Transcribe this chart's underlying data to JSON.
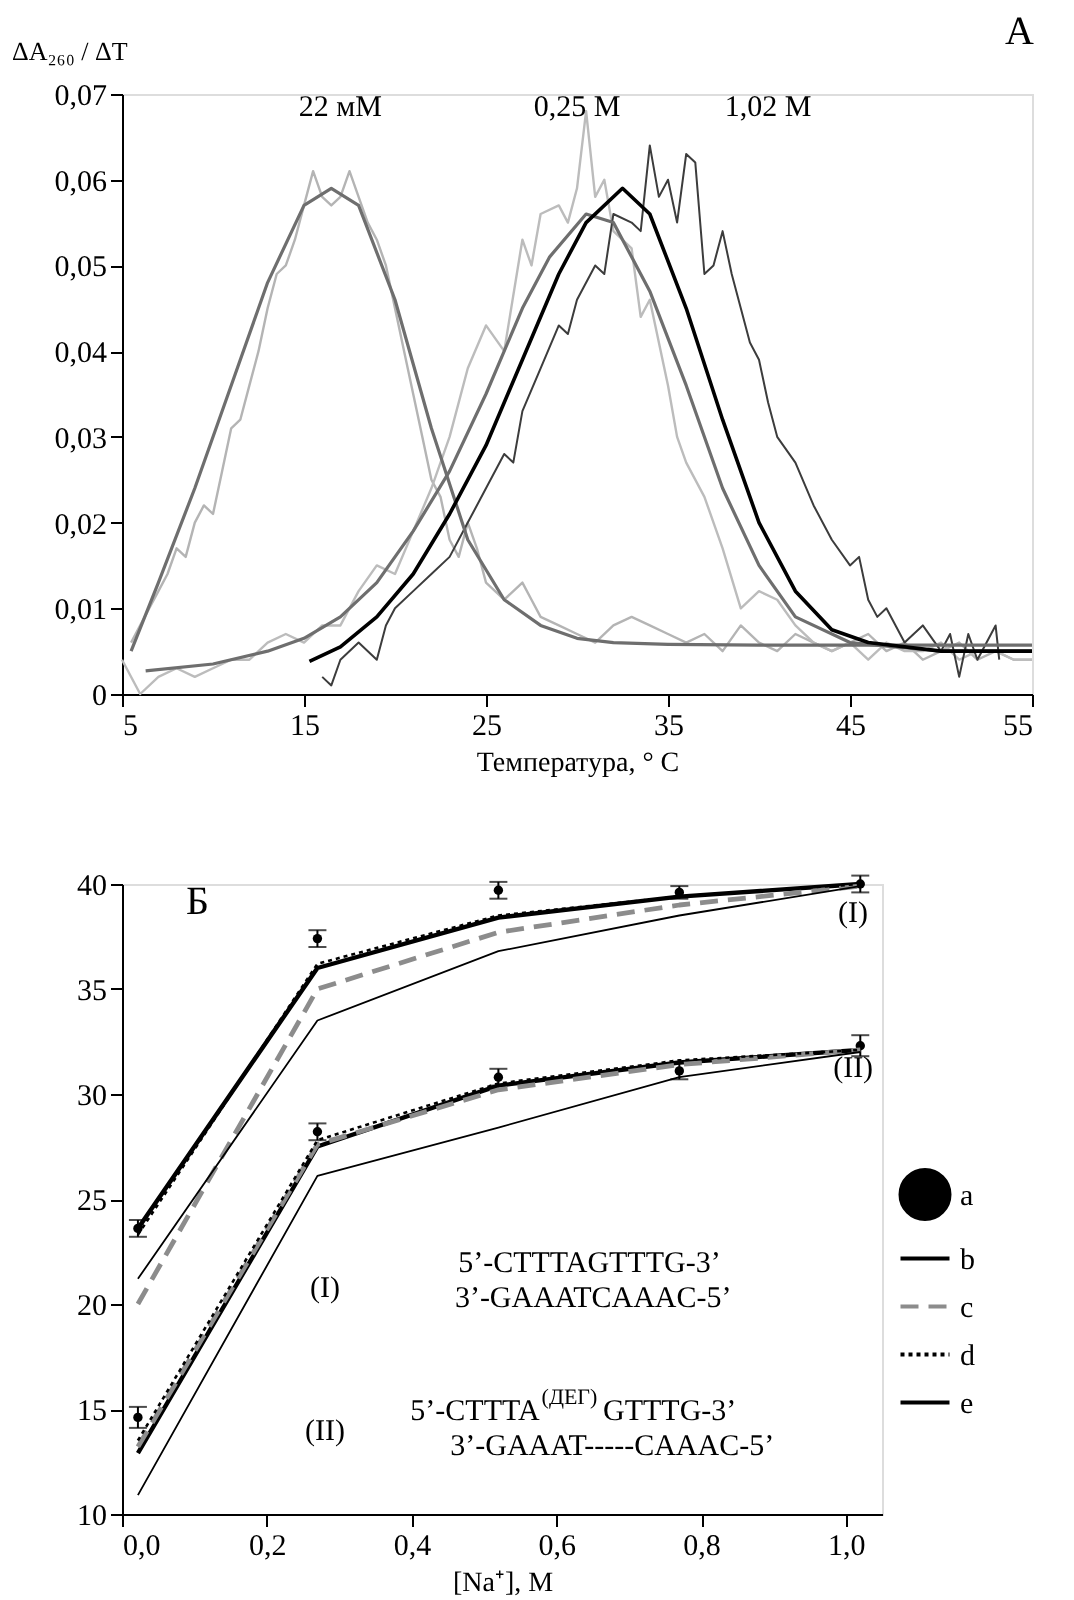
{
  "chart_data": [
    {
      "type": "line",
      "title": "А",
      "xlabel": "Температура, ° С",
      "ylabel": "ΔA₂₆₀ / ΔT",
      "xlim": [
        5,
        55
      ],
      "xticks": [
        5,
        15,
        25,
        35,
        45,
        55
      ],
      "ylim": [
        0,
        0.07
      ],
      "yticks": [
        0,
        {
          "value": 0.01,
          "label": "0,01"
        },
        {
          "value": 0.02,
          "label": "0,02"
        },
        {
          "value": 0.03,
          "label": "0,03"
        },
        {
          "value": 0.04,
          "label": "0,04"
        },
        {
          "value": 0.05,
          "label": "0,05"
        },
        {
          "value": 0.06,
          "label": "0,06"
        },
        {
          "value": 0.07,
          "label": "0,07"
        }
      ],
      "legend": false,
      "marker": "none",
      "annotations": [
        "22 мМ",
        "0,25 М",
        "1,02 М"
      ],
      "series": [
        {
          "color": "#b4b4b4",
          "x": [
            5.5,
            6,
            6.5,
            7,
            7.5,
            8,
            8.5,
            9,
            9.5,
            10,
            10.5,
            11,
            11.5,
            12,
            12.5,
            13,
            13.5,
            14,
            14.5,
            15,
            15.5,
            16,
            16.5,
            17,
            17.5,
            18,
            18.5,
            19,
            19.5,
            20,
            20.5,
            21,
            21.5,
            22,
            22.5,
            23,
            23.5,
            24,
            24.5,
            25,
            25.5,
            26,
            27,
            27.5,
            28,
            29,
            30,
            31,
            32,
            33,
            34,
            35,
            36,
            37,
            38,
            39,
            40,
            41,
            42,
            43,
            44,
            45,
            46,
            47,
            48,
            49,
            50,
            51,
            52,
            53,
            54,
            55
          ],
          "values": [
            0.006,
            0.008,
            0.01,
            0.012,
            0.014,
            0.017,
            0.016,
            0.02,
            0.022,
            0.021,
            0.026,
            0.031,
            0.032,
            0.036,
            0.04,
            0.045,
            0.049,
            0.05,
            0.053,
            0.057,
            0.061,
            0.058,
            0.057,
            0.058,
            0.061,
            0.058,
            0.055,
            0.053,
            0.05,
            0.045,
            0.04,
            0.035,
            0.03,
            0.025,
            0.023,
            0.018,
            0.016,
            0.02,
            0.017,
            0.013,
            0.012,
            0.011,
            0.013,
            0.011,
            0.009,
            0.008,
            0.007,
            0.006,
            0.008,
            0.009,
            0.008,
            0.007,
            0.006,
            0.007,
            0.005,
            0.008,
            0.006,
            0.005,
            0.007,
            0.006,
            0.005,
            0.006,
            0.007,
            0.005,
            0.006,
            0.004,
            0.005,
            0.006,
            0.004,
            0.005,
            0.004,
            0.004
          ]
        },
        {
          "color": "#bcbcbc",
          "x": [
            5,
            6,
            7,
            8,
            9,
            10,
            11,
            12,
            13,
            14,
            15,
            16,
            17,
            18,
            19,
            20,
            21,
            22,
            23,
            24,
            25,
            26,
            27,
            27.5,
            28,
            29,
            29.5,
            30,
            30.5,
            31,
            31.5,
            32,
            33,
            33.5,
            34,
            35,
            35.5,
            36,
            37,
            38,
            39,
            40,
            41,
            42,
            43,
            44,
            45,
            46,
            47,
            48,
            49,
            50,
            51,
            52,
            53,
            54,
            55
          ],
          "values": [
            0.004,
            0.0,
            0.002,
            0.003,
            0.002,
            0.003,
            0.004,
            0.004,
            0.006,
            0.007,
            0.006,
            0.008,
            0.008,
            0.012,
            0.015,
            0.014,
            0.019,
            0.024,
            0.03,
            0.038,
            0.043,
            0.04,
            0.053,
            0.05,
            0.056,
            0.057,
            0.055,
            0.059,
            0.068,
            0.058,
            0.06,
            0.054,
            0.052,
            0.044,
            0.046,
            0.036,
            0.03,
            0.027,
            0.023,
            0.017,
            0.01,
            0.012,
            0.011,
            0.008,
            0.006,
            0.005,
            0.006,
            0.004,
            0.006,
            0.005,
            0.005,
            0.006,
            0.004,
            0.005,
            0.005,
            0.004,
            0.004
          ]
        },
        {
          "color": "#3c3c3c",
          "x": [
            16,
            16.5,
            17,
            18,
            19,
            19.5,
            20,
            21,
            22,
            23,
            24,
            25,
            26,
            26.5,
            27,
            28,
            29,
            29.5,
            30,
            31,
            31.5,
            32,
            33,
            33.5,
            34,
            34.5,
            35,
            35.5,
            36,
            36.5,
            37,
            37.5,
            38,
            38.5,
            39,
            39.5,
            40,
            40.5,
            41,
            42,
            43,
            44,
            45,
            45.5,
            46,
            46.5,
            47,
            48,
            49,
            50,
            50.5,
            51,
            51.5,
            52,
            53,
            53.2
          ],
          "values": [
            0.002,
            0.001,
            0.004,
            0.006,
            0.004,
            0.008,
            0.01,
            0.012,
            0.014,
            0.016,
            0.02,
            0.024,
            0.028,
            0.027,
            0.033,
            0.038,
            0.043,
            0.042,
            0.046,
            0.05,
            0.049,
            0.056,
            0.055,
            0.054,
            0.064,
            0.058,
            0.06,
            0.055,
            0.063,
            0.062,
            0.049,
            0.05,
            0.054,
            0.049,
            0.045,
            0.041,
            0.039,
            0.034,
            0.03,
            0.027,
            0.022,
            0.018,
            0.015,
            0.016,
            0.011,
            0.009,
            0.01,
            0.006,
            0.008,
            0.005,
            0.007,
            0.002,
            0.007,
            0.004,
            0.008,
            0.004
          ]
        },
        {
          "color": "#6e6e6e",
          "x": [
            5.5,
            7,
            9,
            11,
            13,
            15,
            16.5,
            18,
            20,
            22,
            24,
            26,
            28,
            30,
            32,
            35,
            40,
            45,
            50,
            55
          ],
          "values": [
            0.005,
            0.013,
            0.024,
            0.036,
            0.048,
            0.057,
            0.059,
            0.057,
            0.046,
            0.031,
            0.018,
            0.011,
            0.008,
            0.0065,
            0.006,
            0.0058,
            0.0057,
            0.0057,
            0.0057,
            0.0057
          ]
        },
        {
          "color": "#6e6e6e",
          "x": [
            6.3,
            10,
            13,
            15,
            17,
            19,
            21,
            23,
            25,
            27,
            28.5,
            30.5,
            32,
            34,
            36,
            38,
            40,
            42,
            45,
            50,
            55
          ],
          "values": [
            0.0027,
            0.0035,
            0.005,
            0.0065,
            0.009,
            0.013,
            0.019,
            0.026,
            0.035,
            0.045,
            0.051,
            0.056,
            0.055,
            0.047,
            0.036,
            0.024,
            0.015,
            0.009,
            0.006,
            0.005,
            0.005
          ]
        },
        {
          "color": "#000000",
          "x": [
            15.3,
            17,
            19,
            21,
            23,
            25,
            27,
            29,
            30.5,
            32.5,
            34,
            36,
            38,
            40,
            42,
            44,
            46,
            50,
            55
          ],
          "values": [
            0.0038,
            0.0055,
            0.009,
            0.014,
            0.021,
            0.029,
            0.039,
            0.049,
            0.055,
            0.059,
            0.056,
            0.045,
            0.032,
            0.02,
            0.012,
            0.0075,
            0.006,
            0.005,
            0.005
          ]
        }
      ]
    },
    {
      "type": "line",
      "title": "Б",
      "xlabel": "[Na⁺], М",
      "xlim": [
        0,
        1.05
      ],
      "xticks": [
        {
          "value": 0,
          "label": "0,0"
        },
        {
          "value": 0.2,
          "label": "0,2"
        },
        {
          "value": 0.4,
          "label": "0,4"
        },
        {
          "value": 0.6,
          "label": "0,6"
        },
        {
          "value": 0.8,
          "label": "0,8"
        },
        {
          "value": 1.0,
          "label": "1,0"
        }
      ],
      "ylim": [
        10,
        40
      ],
      "yticks": [
        10,
        15,
        20,
        25,
        30,
        35,
        40
      ],
      "legend": "right",
      "annotations": [
        "(I)",
        "(II)",
        "(I)",
        "(II)",
        "5’-CTTTAGTTTG-3’",
        "3’-GAAATCAAAC-5’",
        "5’-CTTTA$^{(ДЕГ)}$ GTTTG-3’",
        "3’-GAAAT-----CAAAC-5’"
      ],
      "series": [
        {
          "name": "a",
          "type": "scatter",
          "marker": "circle",
          "color": "#000000",
          "x": [
            0.022,
            0.27,
            0.52,
            0.77,
            1.02,
            0.022,
            0.27,
            0.52,
            0.77,
            1.02
          ],
          "values": [
            23.6,
            37.4,
            39.7,
            39.6,
            40.0,
            14.6,
            28.2,
            30.8,
            31.1,
            32.3
          ],
          "errors": [
            0.4,
            0.4,
            0.4,
            0.3,
            0.4,
            0.5,
            0.4,
            0.4,
            0.4,
            0.5
          ]
        },
        {
          "name": "b",
          "type": "line",
          "line_style": "solid",
          "color": "#000000",
          "x": [
            0.022,
            0.27,
            0.52,
            0.77,
            1.02
          ],
          "values": [
            23.6,
            36.0,
            38.4,
            39.4,
            40.0
          ]
        },
        {
          "name": "c",
          "type": "line",
          "line_style": "dashed",
          "color": "#8c8c8c",
          "x": [
            0.022,
            0.27,
            0.52,
            0.77,
            1.02
          ],
          "values": [
            20.0,
            35.0,
            37.7,
            39.0,
            39.9
          ]
        },
        {
          "name": "d",
          "type": "line",
          "line_style": "dotted",
          "color": "#000000",
          "x": [
            0.022,
            0.27,
            0.52,
            0.77,
            1.02
          ],
          "values": [
            23.3,
            36.2,
            38.5,
            39.4,
            40.0
          ]
        },
        {
          "name": "e",
          "type": "line",
          "line_style": "solid",
          "color": "#000000",
          "x": [
            0.022,
            0.27,
            0.52,
            0.77,
            1.02
          ],
          "values": [
            21.2,
            33.5,
            36.8,
            38.5,
            39.9
          ]
        },
        {
          "type": "line",
          "line_style": "solid",
          "color": "#000000",
          "x": [
            0.022,
            0.27,
            0.52,
            0.77,
            1.02
          ],
          "values": [
            12.9,
            27.5,
            30.4,
            31.5,
            32.1
          ]
        },
        {
          "type": "line",
          "line_style": "dashed",
          "color": "#8c8c8c",
          "x": [
            0.022,
            0.27,
            0.52,
            0.77,
            1.02
          ],
          "values": [
            13.2,
            27.6,
            30.2,
            31.4,
            32.1
          ]
        },
        {
          "type": "line",
          "line_style": "dotted",
          "color": "#000000",
          "x": [
            0.022,
            0.27,
            0.52,
            0.77,
            1.02
          ],
          "values": [
            13.5,
            27.8,
            30.5,
            31.6,
            32.1
          ]
        },
        {
          "type": "line",
          "line_style": "solid",
          "color": "#000000",
          "x": [
            0.022,
            0.27,
            0.52,
            0.77,
            1.02
          ],
          "values": [
            10.9,
            26.1,
            28.4,
            30.8,
            32.0
          ]
        }
      ]
    }
  ]
}
